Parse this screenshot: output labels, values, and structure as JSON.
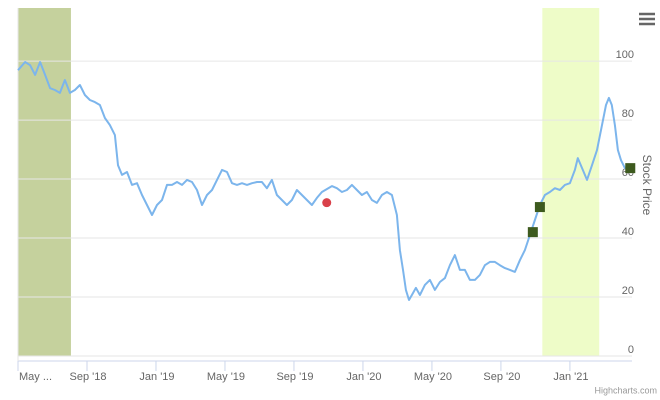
{
  "chart_data": {
    "type": "line",
    "y_axis_title": "Stock Price",
    "credits": "Highcharts.com",
    "x": [
      0,
      0.41,
      0.7,
      0.99,
      1.28,
      1.57,
      1.86,
      2.14,
      2.43,
      2.72,
      3.01,
      3.3,
      3.59,
      3.88,
      4.17,
      4.46,
      4.75,
      5.04,
      5.33,
      5.62,
      5.8,
      6.03,
      6.32,
      6.61,
      6.9,
      7.19,
      7.48,
      7.77,
      8.06,
      8.35,
      8.64,
      8.93,
      9.22,
      9.51,
      9.8,
      10.09,
      10.38,
      10.67,
      10.96,
      11.25,
      11.54,
      11.83,
      12.12,
      12.41,
      12.7,
      12.99,
      13.28,
      13.57,
      13.86,
      14.14,
      14.43,
      14.72,
      15.01,
      15.3,
      15.59,
      15.88,
      16.17,
      16.46,
      16.75,
      17.04,
      17.33,
      17.62,
      18.2,
      18.49,
      18.78,
      19.07,
      19.36,
      19.65,
      19.94,
      20.23,
      20.52,
      20.81,
      21.1,
      21.39,
      21.68,
      21.97,
      22.14,
      22.32,
      22.49,
      22.67,
      22.84,
      23.07,
      23.3,
      23.59,
      23.88,
      24.17,
      24.46,
      24.75,
      25.04,
      25.33,
      25.62,
      25.91,
      26.2,
      26.49,
      26.78,
      27.07,
      27.36,
      27.65,
      27.94,
      28.23,
      28.52,
      28.81,
      29.1,
      29.39,
      29.68,
      29.97,
      30.26,
      30.55,
      30.84,
      31.13,
      31.42,
      31.71,
      32,
      32.29,
      32.46,
      32.75,
      32.99,
      33.28,
      33.57,
      33.86,
      34.09,
      34.26,
      34.43,
      34.61,
      34.78,
      34.96,
      35.19,
      35.5
    ],
    "series": [
      {
        "color": "#7cb5ec",
        "values": [
          96.9,
          99.7,
          98.6,
          95.3,
          99.7,
          95.3,
          90.8,
          90.2,
          89.2,
          93.6,
          89.2,
          90.2,
          91.9,
          88.5,
          86.8,
          86.1,
          85.1,
          80.7,
          78.3,
          74.9,
          64.7,
          61.4,
          62.4,
          58,
          58.6,
          54.6,
          51.2,
          47.8,
          51.2,
          52.9,
          58,
          58,
          59,
          58,
          59.7,
          59,
          56.3,
          51.2,
          54.6,
          56.3,
          59.7,
          63.1,
          62.4,
          58.6,
          58,
          58.6,
          58,
          58.6,
          59,
          59,
          56.9,
          59.7,
          54.6,
          52.9,
          51.2,
          52.9,
          56.3,
          54.6,
          52.9,
          51.2,
          53.6,
          55.6,
          57.6,
          56.9,
          55.6,
          56.3,
          58,
          56.3,
          54.6,
          55.6,
          52.9,
          51.9,
          54.6,
          55.6,
          54.6,
          47.8,
          35.9,
          29.2,
          22.4,
          19,
          20.7,
          23.1,
          20.7,
          24.1,
          25.8,
          22.4,
          25.1,
          26.4,
          30.8,
          34.2,
          29.2,
          29.2,
          25.8,
          25.8,
          27.5,
          30.8,
          31.9,
          31.9,
          30.8,
          29.8,
          29.2,
          28.5,
          32.5,
          35.9,
          41,
          46.1,
          51.2,
          54.6,
          55.6,
          56.9,
          56.3,
          58,
          58.6,
          63.1,
          67.1,
          63.1,
          59.7,
          64.7,
          69.8,
          78.3,
          85.1,
          87.5,
          85.1,
          78.3,
          69.8,
          66.4,
          63.7,
          63.7
        ]
      }
    ],
    "markers": [
      {
        "shape": "circle",
        "color": "#d9414a",
        "x": [
          17.9
        ],
        "values": [
          52
        ]
      },
      {
        "shape": "square",
        "color": "#3d5a1e",
        "x": [
          29.85,
          30.26,
          35.5
        ],
        "values": [
          42,
          50.5,
          63.7
        ]
      }
    ],
    "plot_bands": [
      {
        "from": 0,
        "to": 3.07,
        "color": "#c5d19d"
      },
      {
        "from": 30.4,
        "to": 33.7,
        "color": "#eefcc8"
      }
    ],
    "xlim": [
      0,
      35.6
    ],
    "ylim": [
      0,
      118
    ],
    "xticks": [
      {
        "value": 0,
        "label": "May ..."
      },
      {
        "value": 4,
        "label": "Sep '18"
      },
      {
        "value": 8,
        "label": "Jan '19"
      },
      {
        "value": 12,
        "label": "May '19"
      },
      {
        "value": 16,
        "label": "Sep '19"
      },
      {
        "value": 20,
        "label": "Jan '20"
      },
      {
        "value": 24,
        "label": "May '20"
      },
      {
        "value": 28,
        "label": "Sep '20"
      },
      {
        "value": 32,
        "label": "Jan '21"
      }
    ],
    "yticks": [
      0,
      20,
      40,
      60,
      80,
      100
    ],
    "grid": true
  }
}
